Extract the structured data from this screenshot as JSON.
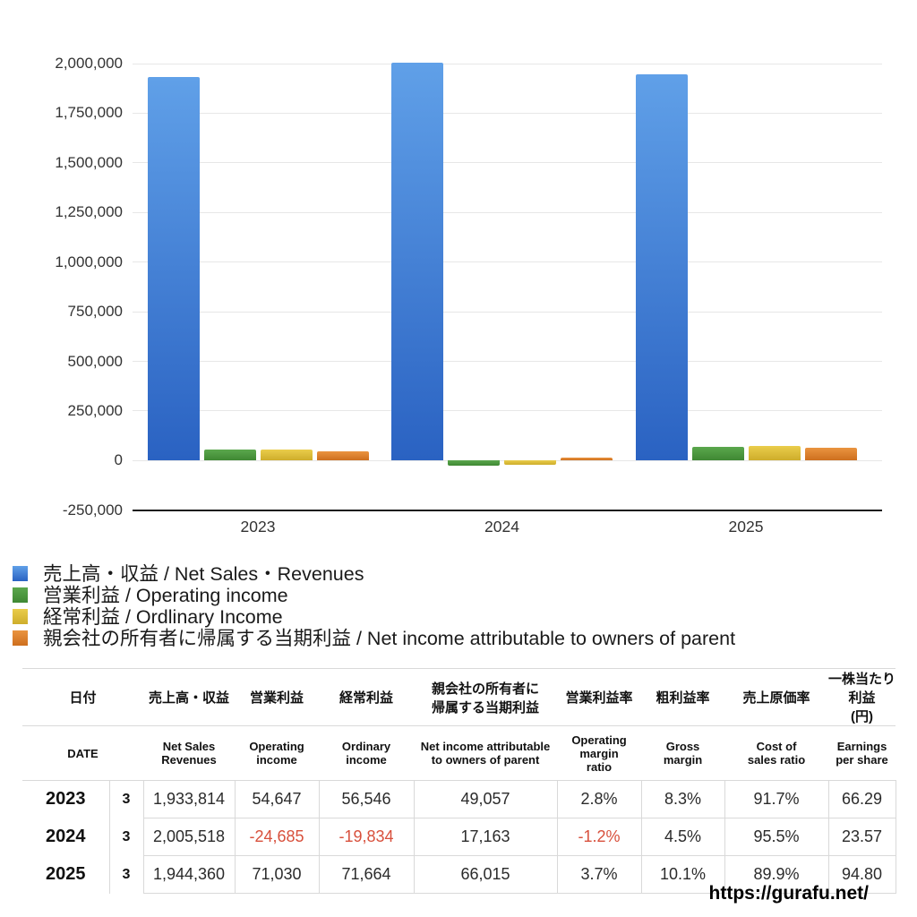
{
  "chart_data": {
    "type": "bar",
    "title": "",
    "categories": [
      "2023",
      "2024",
      "2025"
    ],
    "series": [
      {
        "key": "net-sales",
        "name": "売上高・収益 / Net Sales・Revenues",
        "color_top": "#60A0E8",
        "color_bottom": "#2A62C2",
        "values": [
          1933814,
          2005518,
          1944360
        ]
      },
      {
        "key": "operating-income",
        "name": "営業利益 / Operating income",
        "color_top": "#5BA74D",
        "color_bottom": "#3F8833",
        "values": [
          54647,
          -24685,
          71030
        ]
      },
      {
        "key": "ordinary-income",
        "name": "経常利益 / Ordlinary Income",
        "color_top": "#EACD4B",
        "color_bottom": "#CEAD2B",
        "values": [
          56546,
          -19834,
          71664
        ]
      },
      {
        "key": "net-income-parent",
        "name": "親会社の所有者に帰属する当期利益 / Net income attributable to owners of parent",
        "color_top": "#EA9440",
        "color_bottom": "#CE6F1E",
        "values": [
          49057,
          17163,
          66015
        ]
      }
    ],
    "xlabel": "",
    "ylabel": "",
    "ylim": [
      -250000,
      2000000
    ],
    "ytick_step": 250000,
    "ytick_labels": [
      "2,000,000",
      "1,750,000",
      "1,500,000",
      "1,250,000",
      "1,000,000",
      "750,000",
      "500,000",
      "250,000",
      "0",
      "-250,000"
    ],
    "grid": true,
    "legend_position": "bottom-left"
  },
  "legend": {
    "items": [
      {
        "label": "売上高・収益 / Net Sales・Revenues",
        "color_top": "#60A0E8",
        "color_bottom": "#2A62C2"
      },
      {
        "label": "営業利益 / Operating income",
        "color_top": "#5BA74D",
        "color_bottom": "#3F8833"
      },
      {
        "label": "経常利益 / Ordlinary Income",
        "color_top": "#EACD4B",
        "color_bottom": "#CEAD2B"
      },
      {
        "label": "親会社の所有者に帰属する当期利益 / Net income attributable to owners of parent",
        "color_top": "#EA9440",
        "color_bottom": "#CE6F1E"
      }
    ]
  },
  "table": {
    "header_jp": [
      "日付",
      "売上高・収益",
      "営業利益",
      "経常利益",
      "親会社の所有者に\n帰属する当期利益",
      "営業利益率",
      "粗利益率",
      "売上原価率",
      "一株当たり利益\n(円)"
    ],
    "header_en": [
      "DATE",
      "Net Sales\nRevenues",
      "Operating\nincome",
      "Ordinary\nincome",
      "Net income attributable\nto owners of parent",
      "Operating\nmargin\nratio",
      "Gross\nmargin",
      "Cost of\nsales ratio",
      "Earnings\nper share"
    ],
    "rows": [
      {
        "year": "2023",
        "month": "3",
        "values": [
          "1,933,814",
          "54,647",
          "56,546",
          "49,057",
          "2.8%",
          "8.3%",
          "91.7%",
          "66.29"
        ]
      },
      {
        "year": "2024",
        "month": "3",
        "values": [
          "2,005,518",
          "-24,685",
          "-19,834",
          "17,163",
          "-1.2%",
          "4.5%",
          "95.5%",
          "23.57"
        ]
      },
      {
        "year": "2025",
        "month": "3",
        "values": [
          "1,944,360",
          "71,030",
          "71,664",
          "66,015",
          "3.7%",
          "10.1%",
          "89.9%",
          "94.80"
        ]
      }
    ]
  },
  "footer": {
    "url": "https://gurafu.net/"
  },
  "colors": {
    "negative": "#d8503c",
    "grid": "#e7e7e7",
    "axis": "#1b1b1b",
    "table_border": "#d9d9d9"
  }
}
